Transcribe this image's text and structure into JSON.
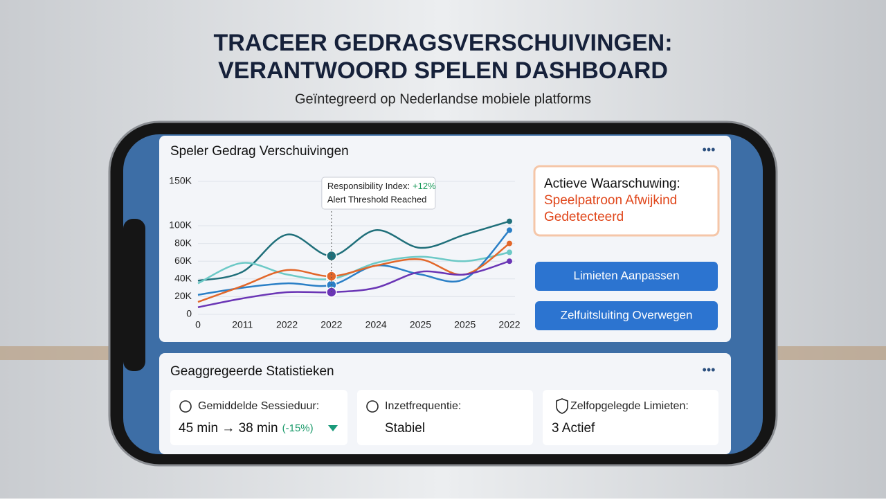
{
  "header": {
    "title_line1": "TRACEER GEDRAGSVERSCHUIVINGEN:",
    "title_line2": "VERANTWOORD SPELEN DASHBOARD",
    "subtitle": "Geïntegreerd op Nederlandse mobiele platforms"
  },
  "chart_data": {
    "type": "line",
    "title": "Speler Gedrag Verschuivingen",
    "categories": [
      "0",
      "2011",
      "2022",
      "2022",
      "2024",
      "2025",
      "2025",
      "2022"
    ],
    "series": [
      {
        "name": "Dark teal",
        "color": "#1f6f7a",
        "values": [
          38000,
          48000,
          90000,
          66000,
          95000,
          75000,
          90000,
          105000
        ]
      },
      {
        "name": "Light teal",
        "color": "#6cc9c6",
        "values": [
          35000,
          58000,
          45000,
          40000,
          58000,
          65000,
          60000,
          70000
        ]
      },
      {
        "name": "Blue",
        "color": "#2a7fc6",
        "values": [
          22000,
          30000,
          35000,
          33000,
          55000,
          45000,
          40000,
          95000
        ]
      },
      {
        "name": "Orange",
        "color": "#e2672a",
        "values": [
          14000,
          32000,
          50000,
          43000,
          55000,
          62000,
          45000,
          80000
        ]
      },
      {
        "name": "Purple",
        "color": "#6a35b5",
        "values": [
          8000,
          18000,
          25000,
          25000,
          30000,
          48000,
          45000,
          60000
        ]
      }
    ],
    "ylim": [
      0,
      150000
    ],
    "yticks": [
      {
        "value": 0,
        "label": "0"
      },
      {
        "value": 20000,
        "label": "20K"
      },
      {
        "value": 40000,
        "label": "40K"
      },
      {
        "value": 60000,
        "label": "60K"
      },
      {
        "value": 80000,
        "label": "80K"
      },
      {
        "value": 100000,
        "label": "100K"
      },
      {
        "value": 150000,
        "label": "150K"
      }
    ],
    "grid": true,
    "annotation": {
      "label": "Responsibility Index:",
      "change": "+12%",
      "note": "Alert Threshold Reached"
    }
  },
  "alert": {
    "heading": "Actieve Waarschuwing:",
    "line1": "Speelpatroon Afwijkind",
    "line2": "Gedetecteerd"
  },
  "buttons": [
    "Limieten Aanpassen",
    "Zelfuitsluiting Overwegen"
  ],
  "stats": {
    "title": "Geaggregeerde Statistieken",
    "cards": [
      {
        "label": "Gemiddelde Sessieduur:",
        "value": "45 min → 38 min",
        "change": "(-15%)"
      },
      {
        "label": "Inzetfrequentie:",
        "value": "Stabiel"
      },
      {
        "label": "Zelfopgelegde Limieten:",
        "value": "3 Actief"
      }
    ]
  }
}
